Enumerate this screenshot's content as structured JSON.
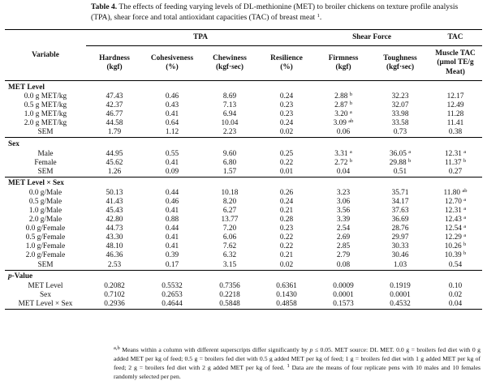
{
  "caption": {
    "label": "Table 4.",
    "text": "The effects of feeding varying levels of DL-methionine (MET) to broiler chickens on texture profile analysis (TPA), shear force and total antioxidant capacities (TAC) of breast meat",
    "sup": "1",
    "end": "."
  },
  "header": {
    "variable": "Variable",
    "groups": {
      "tpa": "TPA",
      "shear": "Shear Force",
      "tac": "TAC"
    },
    "columns": [
      {
        "name": "Hardness",
        "unit": "(kgf)"
      },
      {
        "name": "Cohesiveness",
        "unit": "(%)"
      },
      {
        "name": "Chewiness",
        "unit": "(kgf·sec)"
      },
      {
        "name": "Resilience",
        "unit": "(%)"
      },
      {
        "name": "Firmness",
        "unit": "(kgf)"
      },
      {
        "name": "Toughness",
        "unit": "(kgf·sec)"
      },
      {
        "name": "Muscle TAC",
        "unit": "(µmol TE/g",
        "unit2": "Meat)"
      }
    ]
  },
  "sections": [
    {
      "title": "MET Level",
      "rows": [
        {
          "label": "0.0 g MET/kg",
          "cells": [
            [
              "47.43",
              ""
            ],
            [
              "0.46",
              ""
            ],
            [
              "8.69",
              ""
            ],
            [
              "0.24",
              ""
            ],
            [
              "2.88",
              "b"
            ],
            [
              "32.23",
              ""
            ],
            [
              "12.17",
              ""
            ]
          ]
        },
        {
          "label": "0.5 g MET/kg",
          "cells": [
            [
              "42.37",
              ""
            ],
            [
              "0.43",
              ""
            ],
            [
              "7.13",
              ""
            ],
            [
              "0.23",
              ""
            ],
            [
              "2.87",
              "b"
            ],
            [
              "32.07",
              ""
            ],
            [
              "12.49",
              ""
            ]
          ]
        },
        {
          "label": "1.0 g MET/kg",
          "cells": [
            [
              "46.77",
              ""
            ],
            [
              "0.41",
              ""
            ],
            [
              "6.94",
              ""
            ],
            [
              "0.23",
              ""
            ],
            [
              "3.20",
              "a"
            ],
            [
              "33.98",
              ""
            ],
            [
              "11.28",
              ""
            ]
          ]
        },
        {
          "label": "2.0 g MET/kg",
          "cells": [
            [
              "44.58",
              ""
            ],
            [
              "0.64",
              ""
            ],
            [
              "10.04",
              ""
            ],
            [
              "0.24",
              ""
            ],
            [
              "3.09",
              "ab"
            ],
            [
              "33.58",
              ""
            ],
            [
              "11.41",
              ""
            ]
          ]
        },
        {
          "label": "SEM",
          "cells": [
            [
              "1.79",
              ""
            ],
            [
              "1.12",
              ""
            ],
            [
              "2.23",
              ""
            ],
            [
              "0.02",
              ""
            ],
            [
              "0.06",
              ""
            ],
            [
              "0.73",
              ""
            ],
            [
              "0.38",
              ""
            ]
          ]
        }
      ]
    },
    {
      "title": "Sex",
      "rows": [
        {
          "label": "Male",
          "cells": [
            [
              "44.95",
              ""
            ],
            [
              "0.55",
              ""
            ],
            [
              "9.60",
              ""
            ],
            [
              "0.25",
              ""
            ],
            [
              "3.31",
              "a"
            ],
            [
              "36.05",
              "a"
            ],
            [
              "12.31",
              "a"
            ]
          ]
        },
        {
          "label": "Female",
          "cells": [
            [
              "45.62",
              ""
            ],
            [
              "0.41",
              ""
            ],
            [
              "6.80",
              ""
            ],
            [
              "0.22",
              ""
            ],
            [
              "2.72",
              "b"
            ],
            [
              "29.88",
              "b"
            ],
            [
              "11.37",
              "b"
            ]
          ]
        },
        {
          "label": "SEM",
          "cells": [
            [
              "1.26",
              ""
            ],
            [
              "0.09",
              ""
            ],
            [
              "1.57",
              ""
            ],
            [
              "0.01",
              ""
            ],
            [
              "0.04",
              ""
            ],
            [
              "0.51",
              ""
            ],
            [
              "0.27",
              ""
            ]
          ]
        }
      ]
    },
    {
      "title": "MET Level × Sex",
      "rows": [
        {
          "label": "0.0 g/Male",
          "cells": [
            [
              "50.13",
              ""
            ],
            [
              "0.44",
              ""
            ],
            [
              "10.18",
              ""
            ],
            [
              "0.26",
              ""
            ],
            [
              "3.23",
              ""
            ],
            [
              "35.71",
              ""
            ],
            [
              "11.80",
              "ab"
            ]
          ]
        },
        {
          "label": "0.5 g/Male",
          "cells": [
            [
              "41.43",
              ""
            ],
            [
              "0.46",
              ""
            ],
            [
              "8.20",
              ""
            ],
            [
              "0.24",
              ""
            ],
            [
              "3.06",
              ""
            ],
            [
              "34.17",
              ""
            ],
            [
              "12.70",
              "a"
            ]
          ]
        },
        {
          "label": "1.0 g/Male",
          "cells": [
            [
              "45.43",
              ""
            ],
            [
              "0.41",
              ""
            ],
            [
              "6.27",
              ""
            ],
            [
              "0.21",
              ""
            ],
            [
              "3.56",
              ""
            ],
            [
              "37.63",
              ""
            ],
            [
              "12.31",
              "a"
            ]
          ]
        },
        {
          "label": "2.0 g/Male",
          "cells": [
            [
              "42.80",
              ""
            ],
            [
              "0.88",
              ""
            ],
            [
              "13.77",
              ""
            ],
            [
              "0.28",
              ""
            ],
            [
              "3.39",
              ""
            ],
            [
              "36.69",
              ""
            ],
            [
              "12.43",
              "a"
            ]
          ]
        },
        {
          "label": "0.0 g/Female",
          "cells": [
            [
              "44.73",
              ""
            ],
            [
              "0.44",
              ""
            ],
            [
              "7.20",
              ""
            ],
            [
              "0.23",
              ""
            ],
            [
              "2.54",
              ""
            ],
            [
              "28.76",
              ""
            ],
            [
              "12.54",
              "a"
            ]
          ]
        },
        {
          "label": "0.5 g/Female",
          "cells": [
            [
              "43.30",
              ""
            ],
            [
              "0.41",
              ""
            ],
            [
              "6.06",
              ""
            ],
            [
              "0.22",
              ""
            ],
            [
              "2.69",
              ""
            ],
            [
              "29.97",
              ""
            ],
            [
              "12.29",
              "a"
            ]
          ]
        },
        {
          "label": "1.0 g/Female",
          "cells": [
            [
              "48.10",
              ""
            ],
            [
              "0.41",
              ""
            ],
            [
              "7.62",
              ""
            ],
            [
              "0.22",
              ""
            ],
            [
              "2.85",
              ""
            ],
            [
              "30.33",
              ""
            ],
            [
              "10.26",
              "b"
            ]
          ]
        },
        {
          "label": "2.0 g/Female",
          "cells": [
            [
              "46.36",
              ""
            ],
            [
              "0.39",
              ""
            ],
            [
              "6.32",
              ""
            ],
            [
              "0.21",
              ""
            ],
            [
              "2.79",
              ""
            ],
            [
              "30.46",
              ""
            ],
            [
              "10.39",
              "b"
            ]
          ]
        },
        {
          "label": "SEM",
          "cells": [
            [
              "2.53",
              ""
            ],
            [
              "0.17",
              ""
            ],
            [
              "3.15",
              ""
            ],
            [
              "0.02",
              ""
            ],
            [
              "0.08",
              ""
            ],
            [
              "1.03",
              ""
            ],
            [
              "0.54",
              ""
            ]
          ]
        }
      ]
    },
    {
      "title": "p-Value",
      "title_italic": "p",
      "title_rest": "-Value",
      "rows": [
        {
          "label": "MET Level",
          "cells": [
            [
              "0.2082",
              ""
            ],
            [
              "0.5532",
              ""
            ],
            [
              "0.7356",
              ""
            ],
            [
              "0.6361",
              ""
            ],
            [
              "0.0009",
              ""
            ],
            [
              "0.1919",
              ""
            ],
            [
              "0.10",
              ""
            ]
          ]
        },
        {
          "label": "Sex",
          "cells": [
            [
              "0.7102",
              ""
            ],
            [
              "0.2653",
              ""
            ],
            [
              "0.2218",
              ""
            ],
            [
              "0.1430",
              ""
            ],
            [
              "0.0001",
              ""
            ],
            [
              "0.0001",
              ""
            ],
            [
              "0.02",
              ""
            ]
          ]
        },
        {
          "label": "MET Level × Sex",
          "cells": [
            [
              "0.2936",
              ""
            ],
            [
              "0.4644",
              ""
            ],
            [
              "0.5848",
              ""
            ],
            [
              "0.4858",
              ""
            ],
            [
              "0.1573",
              ""
            ],
            [
              "0.4532",
              ""
            ],
            [
              "0.04",
              ""
            ]
          ]
        }
      ]
    }
  ],
  "footnote": {
    "sup_ab": "a,b",
    "text1": "Means within a column with different superscripts differ significantly by ",
    "p": "p",
    "text2": " ≤ 0.05. MET source: DL MET. 0.0 g = broilers fed diet with 0 g added MET per kg of feed; 0.5 g = broilers fed diet with 0.5 g added MET per kg of feed; 1 g = broilers fed diet with 1 g added MET per kg of feed; 2 g = broilers fed diet with 2 g added MET per kg of feed.",
    "sup1": "1",
    "text3": " Data are the means of four replicate pens with 10 males and 10 females randomly selected per pen."
  }
}
